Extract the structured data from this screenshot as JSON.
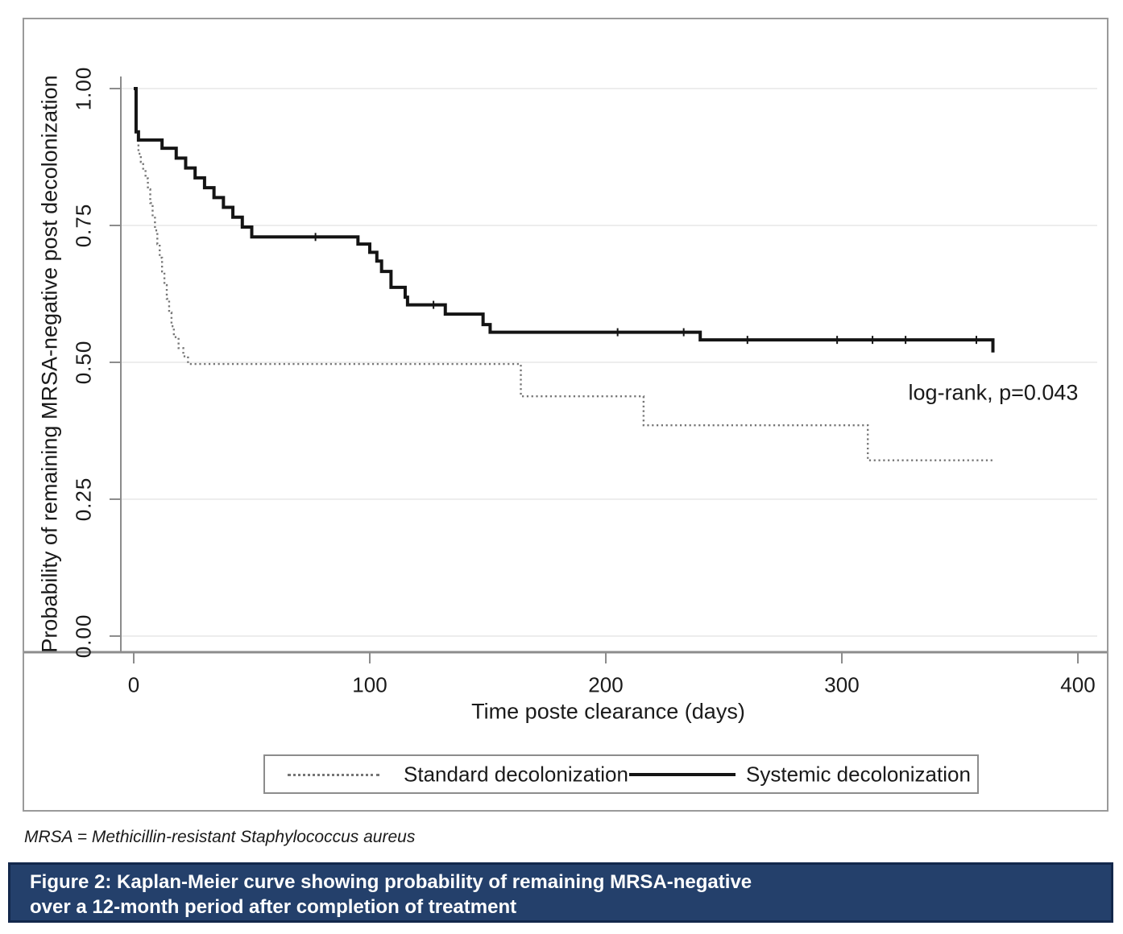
{
  "figure": {
    "footnote": "MRSA = Methicillin-resistant Staphylococcus aureus",
    "caption": {
      "line1": "Figure 2: Kaplan-Meier curve showing probability of remaining MRSA-negative",
      "line2": "over a 12-month period after completion of treatment"
    }
  },
  "colors": {
    "banner_bg": "#24406b",
    "banner_border": "#13284c",
    "solid_line": "#141414",
    "dotted_line": "#767676",
    "grid": "#ededed",
    "axis": "#8c8c8c",
    "figure_border": "#9a9a9a",
    "text": "#1a1a1a"
  },
  "chart_data": {
    "type": "line",
    "subtype": "kaplan-meier-step",
    "title": "",
    "xlabel": "Time poste clearance (days)",
    "ylabel": "Probability of remaining MRSA-negative post decolonization",
    "xlim": [
      0,
      400
    ],
    "ylim": [
      0.0,
      1.0
    ],
    "grid": "horizontal-only",
    "legend_position": "bottom-box",
    "x_ticks": [
      {
        "v": 0,
        "label": "0"
      },
      {
        "v": 100,
        "label": "100"
      },
      {
        "v": 200,
        "label": "200"
      },
      {
        "v": 300,
        "label": "300"
      },
      {
        "v": 400,
        "label": "400"
      }
    ],
    "y_ticks": [
      {
        "v": 0.0,
        "label": "0.00"
      },
      {
        "v": 0.25,
        "label": "0.25"
      },
      {
        "v": 0.5,
        "label": "0.50"
      },
      {
        "v": 0.75,
        "label": "0.75"
      },
      {
        "v": 1.0,
        "label": "1.00"
      }
    ],
    "annotation": {
      "text": "log-rank, p=0.043",
      "x_day": 364,
      "y_prob": 0.44
    },
    "series": [
      {
        "name": "Standard decolonization",
        "line_style": "dotted",
        "color": "#767676",
        "end_day": 364,
        "steps": [
          [
            0,
            1.0
          ],
          [
            1,
            0.921
          ],
          [
            2,
            0.881
          ],
          [
            3,
            0.866
          ],
          [
            4,
            0.851
          ],
          [
            5,
            0.836
          ],
          [
            6,
            0.816
          ],
          [
            7,
            0.791
          ],
          [
            8,
            0.766
          ],
          [
            9,
            0.741
          ],
          [
            10,
            0.716
          ],
          [
            11,
            0.691
          ],
          [
            12,
            0.666
          ],
          [
            13,
            0.641
          ],
          [
            14,
            0.616
          ],
          [
            15,
            0.591
          ],
          [
            16,
            0.566
          ],
          [
            17,
            0.546
          ],
          [
            19,
            0.526
          ],
          [
            21,
            0.511
          ],
          [
            23,
            0.497
          ],
          [
            164,
            0.438
          ],
          [
            216,
            0.385
          ],
          [
            311,
            0.321
          ]
        ]
      },
      {
        "name": "Systemic decolonization",
        "line_style": "solid",
        "color": "#141414",
        "end_day": 364,
        "steps": [
          [
            0,
            1.0
          ],
          [
            1,
            0.921
          ],
          [
            2,
            0.906
          ],
          [
            12,
            0.891
          ],
          [
            18,
            0.873
          ],
          [
            22,
            0.855
          ],
          [
            26,
            0.837
          ],
          [
            30,
            0.819
          ],
          [
            34,
            0.801
          ],
          [
            38,
            0.783
          ],
          [
            42,
            0.765
          ],
          [
            46,
            0.747
          ],
          [
            50,
            0.729
          ],
          [
            95,
            0.716
          ],
          [
            100,
            0.701
          ],
          [
            103,
            0.685
          ],
          [
            105,
            0.666
          ],
          [
            109,
            0.637
          ],
          [
            115,
            0.619
          ],
          [
            116,
            0.605
          ],
          [
            132,
            0.588
          ],
          [
            148,
            0.569
          ],
          [
            151,
            0.555
          ],
          [
            240,
            0.541
          ],
          [
            364,
            0.518
          ]
        ],
        "censor_days": [
          77,
          127,
          205,
          233,
          260,
          298,
          313,
          327,
          357
        ]
      }
    ]
  }
}
